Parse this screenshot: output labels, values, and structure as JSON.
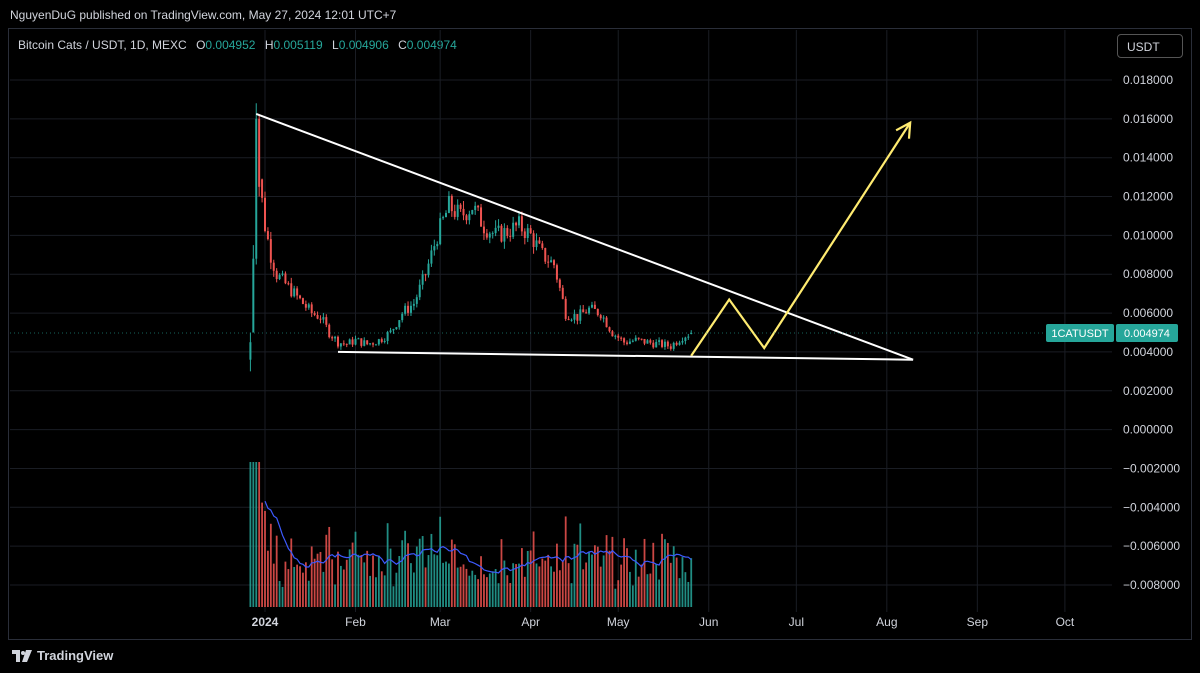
{
  "header": {
    "publish_line": "NguyenDuG published on TradingView.com, May 27, 2024 12:01 UTC+7"
  },
  "symbol": {
    "title": "Bitcoin Cats / USDT, 1D, MEXC",
    "open_label": "O",
    "open": "0.004952",
    "high_label": "H",
    "high": "0.005119",
    "low_label": "L",
    "low": "0.004906",
    "close_label": "C",
    "close": "0.004974"
  },
  "currency_button": "USDT",
  "price_badge": {
    "ticker": "1CATUSDT",
    "price": "0.004974"
  },
  "footer": {
    "brand": "TradingView"
  },
  "colors": {
    "up": "#26a69a",
    "down": "#ef5350",
    "grid": "#1a1d24",
    "trendline": "#ffffff",
    "projection": "#ffeb70",
    "volume_ma": "#3d5afe"
  },
  "chart_data": {
    "type": "candlestick",
    "y_axis_ticks": [
      "0.018000",
      "0.016000",
      "0.014000",
      "0.012000",
      "0.010000",
      "0.008000",
      "0.006000",
      "0.004000",
      "0.002000",
      "0.000000",
      "−0.002000",
      "−0.004000",
      "−0.006000",
      "−0.008000"
    ],
    "x_axis_ticks": [
      "2024",
      "Feb",
      "Mar",
      "Apr",
      "May",
      "Jun",
      "Jul",
      "Aug",
      "Sep",
      "Oct"
    ],
    "ylim": [
      -0.009,
      0.0185
    ],
    "daily_close_approx": [
      [
        "2023-12-27",
        0.004
      ],
      [
        "2023-12-28",
        0.0085
      ],
      [
        "2023-12-29",
        0.016
      ],
      [
        "2023-12-30",
        0.013
      ],
      [
        "2024-01-01",
        0.0105
      ],
      [
        "2024-01-03",
        0.009
      ],
      [
        "2024-01-05",
        0.008
      ],
      [
        "2024-01-08",
        0.0075
      ],
      [
        "2024-01-11",
        0.007
      ],
      [
        "2024-01-14",
        0.0065
      ],
      [
        "2024-01-17",
        0.006
      ],
      [
        "2024-01-20",
        0.0058
      ],
      [
        "2024-01-23",
        0.005
      ],
      [
        "2024-01-26",
        0.0045
      ],
      [
        "2024-01-29",
        0.0044
      ],
      [
        "2024-02-01",
        0.0046
      ],
      [
        "2024-02-05",
        0.0044
      ],
      [
        "2024-02-09",
        0.0046
      ],
      [
        "2024-02-13",
        0.005
      ],
      [
        "2024-02-17",
        0.006
      ],
      [
        "2024-02-21",
        0.0065
      ],
      [
        "2024-02-25",
        0.008
      ],
      [
        "2024-02-29",
        0.01
      ],
      [
        "2024-03-04",
        0.0115
      ],
      [
        "2024-03-08",
        0.011
      ],
      [
        "2024-03-12",
        0.0115
      ],
      [
        "2024-03-16",
        0.0105
      ],
      [
        "2024-03-20",
        0.01
      ],
      [
        "2024-03-24",
        0.0102
      ],
      [
        "2024-03-28",
        0.0105
      ],
      [
        "2024-04-01",
        0.01
      ],
      [
        "2024-04-05",
        0.009
      ],
      [
        "2024-04-09",
        0.0085
      ],
      [
        "2024-04-13",
        0.006
      ],
      [
        "2024-04-17",
        0.0058
      ],
      [
        "2024-04-21",
        0.0062
      ],
      [
        "2024-04-25",
        0.006
      ],
      [
        "2024-04-29",
        0.005
      ],
      [
        "2024-05-03",
        0.0045
      ],
      [
        "2024-05-07",
        0.0046
      ],
      [
        "2024-05-11",
        0.0045
      ],
      [
        "2024-05-15",
        0.0044
      ],
      [
        "2024-05-19",
        0.0043
      ],
      [
        "2024-05-23",
        0.0048
      ],
      [
        "2024-05-26",
        0.004974
      ]
    ],
    "drawings": {
      "descending_trendline": [
        [
          "2023-12-29",
          0.01625
        ],
        [
          "2024-08-10",
          0.0036
        ]
      ],
      "support_line": [
        [
          "2024-01-26",
          0.004
        ],
        [
          "2024-08-10",
          0.0036
        ]
      ],
      "projection_path": [
        [
          "2024-05-26",
          0.0038
        ],
        [
          "2024-06-08",
          0.0067
        ],
        [
          "2024-06-20",
          0.0042
        ],
        [
          "2024-08-09",
          0.0158
        ]
      ]
    }
  }
}
